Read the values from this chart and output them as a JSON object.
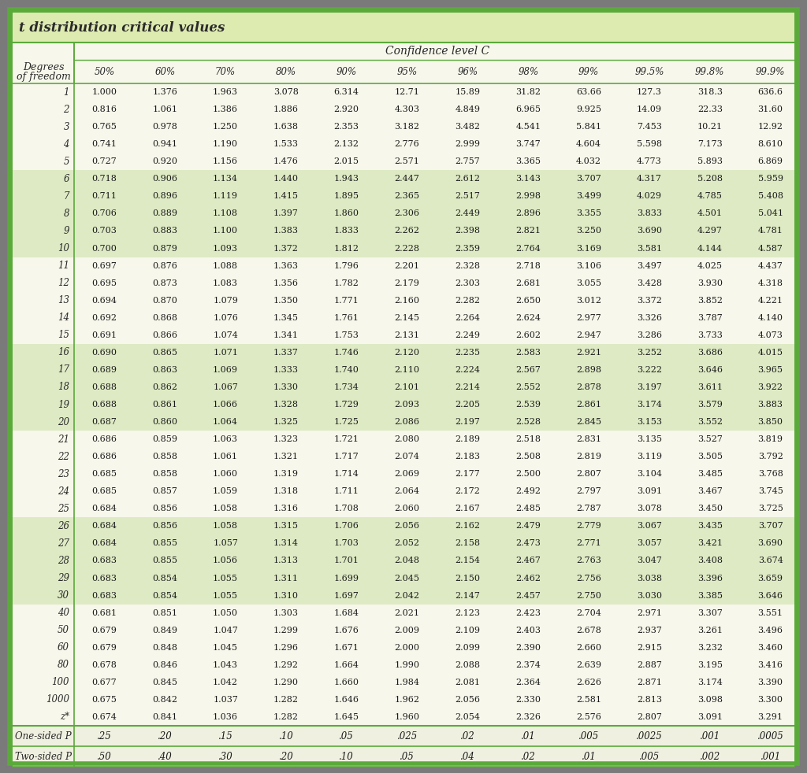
{
  "title": "t distribution critical values",
  "confidence_label": "Confidence level C",
  "col_headers": [
    "50%",
    "60%",
    "70%",
    "80%",
    "90%",
    "95%",
    "96%",
    "98%",
    "99%",
    "99.5%",
    "99.8%",
    "99.9%"
  ],
  "row_label_header1": "Degrees",
  "row_label_header2": "of freedom",
  "rows": [
    [
      "1",
      "1.000",
      "1.376",
      "1.963",
      "3.078",
      "6.314",
      "12.71",
      "15.89",
      "31.82",
      "63.66",
      "127.3",
      "318.3",
      "636.6"
    ],
    [
      "2",
      "0.816",
      "1.061",
      "1.386",
      "1.886",
      "2.920",
      "4.303",
      "4.849",
      "6.965",
      "9.925",
      "14.09",
      "22.33",
      "31.60"
    ],
    [
      "3",
      "0.765",
      "0.978",
      "1.250",
      "1.638",
      "2.353",
      "3.182",
      "3.482",
      "4.541",
      "5.841",
      "7.453",
      "10.21",
      "12.92"
    ],
    [
      "4",
      "0.741",
      "0.941",
      "1.190",
      "1.533",
      "2.132",
      "2.776",
      "2.999",
      "3.747",
      "4.604",
      "5.598",
      "7.173",
      "8.610"
    ],
    [
      "5",
      "0.727",
      "0.920",
      "1.156",
      "1.476",
      "2.015",
      "2.571",
      "2.757",
      "3.365",
      "4.032",
      "4.773",
      "5.893",
      "6.869"
    ],
    [
      "6",
      "0.718",
      "0.906",
      "1.134",
      "1.440",
      "1.943",
      "2.447",
      "2.612",
      "3.143",
      "3.707",
      "4.317",
      "5.208",
      "5.959"
    ],
    [
      "7",
      "0.711",
      "0.896",
      "1.119",
      "1.415",
      "1.895",
      "2.365",
      "2.517",
      "2.998",
      "3.499",
      "4.029",
      "4.785",
      "5.408"
    ],
    [
      "8",
      "0.706",
      "0.889",
      "1.108",
      "1.397",
      "1.860",
      "2.306",
      "2.449",
      "2.896",
      "3.355",
      "3.833",
      "4.501",
      "5.041"
    ],
    [
      "9",
      "0.703",
      "0.883",
      "1.100",
      "1.383",
      "1.833",
      "2.262",
      "2.398",
      "2.821",
      "3.250",
      "3.690",
      "4.297",
      "4.781"
    ],
    [
      "10",
      "0.700",
      "0.879",
      "1.093",
      "1.372",
      "1.812",
      "2.228",
      "2.359",
      "2.764",
      "3.169",
      "3.581",
      "4.144",
      "4.587"
    ],
    [
      "11",
      "0.697",
      "0.876",
      "1.088",
      "1.363",
      "1.796",
      "2.201",
      "2.328",
      "2.718",
      "3.106",
      "3.497",
      "4.025",
      "4.437"
    ],
    [
      "12",
      "0.695",
      "0.873",
      "1.083",
      "1.356",
      "1.782",
      "2.179",
      "2.303",
      "2.681",
      "3.055",
      "3.428",
      "3.930",
      "4.318"
    ],
    [
      "13",
      "0.694",
      "0.870",
      "1.079",
      "1.350",
      "1.771",
      "2.160",
      "2.282",
      "2.650",
      "3.012",
      "3.372",
      "3.852",
      "4.221"
    ],
    [
      "14",
      "0.692",
      "0.868",
      "1.076",
      "1.345",
      "1.761",
      "2.145",
      "2.264",
      "2.624",
      "2.977",
      "3.326",
      "3.787",
      "4.140"
    ],
    [
      "15",
      "0.691",
      "0.866",
      "1.074",
      "1.341",
      "1.753",
      "2.131",
      "2.249",
      "2.602",
      "2.947",
      "3.286",
      "3.733",
      "4.073"
    ],
    [
      "16",
      "0.690",
      "0.865",
      "1.071",
      "1.337",
      "1.746",
      "2.120",
      "2.235",
      "2.583",
      "2.921",
      "3.252",
      "3.686",
      "4.015"
    ],
    [
      "17",
      "0.689",
      "0.863",
      "1.069",
      "1.333",
      "1.740",
      "2.110",
      "2.224",
      "2.567",
      "2.898",
      "3.222",
      "3.646",
      "3.965"
    ],
    [
      "18",
      "0.688",
      "0.862",
      "1.067",
      "1.330",
      "1.734",
      "2.101",
      "2.214",
      "2.552",
      "2.878",
      "3.197",
      "3.611",
      "3.922"
    ],
    [
      "19",
      "0.688",
      "0.861",
      "1.066",
      "1.328",
      "1.729",
      "2.093",
      "2.205",
      "2.539",
      "2.861",
      "3.174",
      "3.579",
      "3.883"
    ],
    [
      "20",
      "0.687",
      "0.860",
      "1.064",
      "1.325",
      "1.725",
      "2.086",
      "2.197",
      "2.528",
      "2.845",
      "3.153",
      "3.552",
      "3.850"
    ],
    [
      "21",
      "0.686",
      "0.859",
      "1.063",
      "1.323",
      "1.721",
      "2.080",
      "2.189",
      "2.518",
      "2.831",
      "3.135",
      "3.527",
      "3.819"
    ],
    [
      "22",
      "0.686",
      "0.858",
      "1.061",
      "1.321",
      "1.717",
      "2.074",
      "2.183",
      "2.508",
      "2.819",
      "3.119",
      "3.505",
      "3.792"
    ],
    [
      "23",
      "0.685",
      "0.858",
      "1.060",
      "1.319",
      "1.714",
      "2.069",
      "2.177",
      "2.500",
      "2.807",
      "3.104",
      "3.485",
      "3.768"
    ],
    [
      "24",
      "0.685",
      "0.857",
      "1.059",
      "1.318",
      "1.711",
      "2.064",
      "2.172",
      "2.492",
      "2.797",
      "3.091",
      "3.467",
      "3.745"
    ],
    [
      "25",
      "0.684",
      "0.856",
      "1.058",
      "1.316",
      "1.708",
      "2.060",
      "2.167",
      "2.485",
      "2.787",
      "3.078",
      "3.450",
      "3.725"
    ],
    [
      "26",
      "0.684",
      "0.856",
      "1.058",
      "1.315",
      "1.706",
      "2.056",
      "2.162",
      "2.479",
      "2.779",
      "3.067",
      "3.435",
      "3.707"
    ],
    [
      "27",
      "0.684",
      "0.855",
      "1.057",
      "1.314",
      "1.703",
      "2.052",
      "2.158",
      "2.473",
      "2.771",
      "3.057",
      "3.421",
      "3.690"
    ],
    [
      "28",
      "0.683",
      "0.855",
      "1.056",
      "1.313",
      "1.701",
      "2.048",
      "2.154",
      "2.467",
      "2.763",
      "3.047",
      "3.408",
      "3.674"
    ],
    [
      "29",
      "0.683",
      "0.854",
      "1.055",
      "1.311",
      "1.699",
      "2.045",
      "2.150",
      "2.462",
      "2.756",
      "3.038",
      "3.396",
      "3.659"
    ],
    [
      "30",
      "0.683",
      "0.854",
      "1.055",
      "1.310",
      "1.697",
      "2.042",
      "2.147",
      "2.457",
      "2.750",
      "3.030",
      "3.385",
      "3.646"
    ],
    [
      "40",
      "0.681",
      "0.851",
      "1.050",
      "1.303",
      "1.684",
      "2.021",
      "2.123",
      "2.423",
      "2.704",
      "2.971",
      "3.307",
      "3.551"
    ],
    [
      "50",
      "0.679",
      "0.849",
      "1.047",
      "1.299",
      "1.676",
      "2.009",
      "2.109",
      "2.403",
      "2.678",
      "2.937",
      "3.261",
      "3.496"
    ],
    [
      "60",
      "0.679",
      "0.848",
      "1.045",
      "1.296",
      "1.671",
      "2.000",
      "2.099",
      "2.390",
      "2.660",
      "2.915",
      "3.232",
      "3.460"
    ],
    [
      "80",
      "0.678",
      "0.846",
      "1.043",
      "1.292",
      "1.664",
      "1.990",
      "2.088",
      "2.374",
      "2.639",
      "2.887",
      "3.195",
      "3.416"
    ],
    [
      "100",
      "0.677",
      "0.845",
      "1.042",
      "1.290",
      "1.660",
      "1.984",
      "2.081",
      "2.364",
      "2.626",
      "2.871",
      "3.174",
      "3.390"
    ],
    [
      "1000",
      "0.675",
      "0.842",
      "1.037",
      "1.282",
      "1.646",
      "1.962",
      "2.056",
      "2.330",
      "2.581",
      "2.813",
      "3.098",
      "3.300"
    ],
    [
      "z*",
      "0.674",
      "0.841",
      "1.036",
      "1.282",
      "1.645",
      "1.960",
      "2.054",
      "2.326",
      "2.576",
      "2.807",
      "3.091",
      "3.291"
    ]
  ],
  "footer_rows": [
    [
      "One-sided P",
      ".25",
      ".20",
      ".15",
      ".10",
      ".05",
      ".025",
      ".02",
      ".01",
      ".005",
      ".0025",
      ".001",
      ".0005"
    ],
    [
      "Two-sided P",
      ".50",
      ".40",
      ".30",
      ".20",
      ".10",
      ".05",
      ".04",
      ".02",
      ".01",
      ".005",
      ".002",
      ".001"
    ]
  ],
  "shaded_row_indices": [
    5,
    6,
    7,
    8,
    9,
    15,
    16,
    17,
    18,
    19,
    25,
    26,
    27,
    28,
    29
  ],
  "bg_color": "#f7f7eb",
  "shaded_color": "#deeac4",
  "border_color": "#5aaa3a",
  "title_bg": "#ddeab0",
  "outer_bg": "#7a7a7a",
  "footer_bg": "#f0f0e0",
  "text_color": "#1a1a1a",
  "line_color": "#5aaa3a"
}
